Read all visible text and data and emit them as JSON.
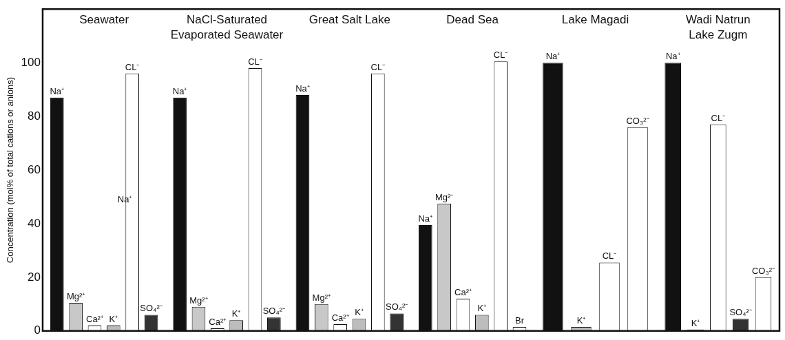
{
  "chart_data": {
    "type": "bar",
    "ylabel": "Concentration (mol% of total cations or anions)",
    "categories": [
      "Seawater",
      "NaCl-Saturated\nEvaporated Seawater",
      "Great Salt Lake",
      "Dead Sea",
      "Lake Magadi",
      "Wadi Natrun\nLake Zugm"
    ],
    "series": [
      {
        "color": "#111111",
        "values": [
          87,
          87,
          88,
          39.5,
          100,
          100
        ],
        "value_labels": [
          "Na⁺",
          "Na⁺",
          "Na⁺",
          "Na⁺",
          "Na⁺",
          "Na⁺"
        ]
      },
      {
        "color": "#c8c8c8",
        "values": [
          10.5,
          9,
          10,
          47.5,
          null,
          null
        ],
        "value_labels": [
          "Mg²⁺",
          "Mg²⁺",
          "Mg²⁺",
          "Mg²⁻",
          null,
          null
        ]
      },
      {
        "color": "#ffffff",
        "values": [
          2,
          1,
          2.5,
          12,
          null,
          null
        ],
        "value_labels": [
          "Ca²⁺",
          "Ca²⁺",
          "Ca²⁺",
          "Ca²⁺",
          null,
          null
        ]
      },
      {
        "color": "#bdbdbd",
        "values": [
          2,
          4,
          4.5,
          6,
          1.5,
          0.5
        ],
        "value_labels": [
          "K⁺",
          "K⁺",
          "K⁺",
          "K⁺",
          "K⁺",
          "K⁺"
        ]
      },
      {
        "color": "#ffffff",
        "values": [
          96,
          98,
          96,
          100.5,
          25.5,
          77
        ],
        "value_labels": [
          "CL⁻",
          "CL⁻",
          "CL⁻",
          "CL⁻",
          "CL⁻",
          "CL⁻"
        ]
      },
      {
        "color": "#333333",
        "values": [
          6,
          5,
          6.5,
          null,
          null,
          4.5
        ],
        "value_labels": [
          "SO₄²⁻",
          "SO₄²⁻",
          "SO₄²⁻",
          null,
          null,
          "SO₄²⁻"
        ]
      },
      {
        "color": "#ffffff",
        "values": [
          null,
          null,
          null,
          null,
          76,
          20
        ],
        "value_labels": [
          null,
          null,
          null,
          null,
          "CO₃²⁻",
          "CO₃²⁻"
        ]
      },
      {
        "color": "#ffffff",
        "values": [
          null,
          null,
          null,
          1.5,
          null,
          null
        ],
        "value_labels": [
          null,
          null,
          null,
          "Br",
          null,
          null
        ]
      }
    ],
    "ylim": [
      0,
      120
    ],
    "yticks": [
      0,
      20,
      40,
      60,
      80,
      100
    ],
    "grid": false,
    "legend": false,
    "annotations": [
      "Na⁺"
    ]
  }
}
